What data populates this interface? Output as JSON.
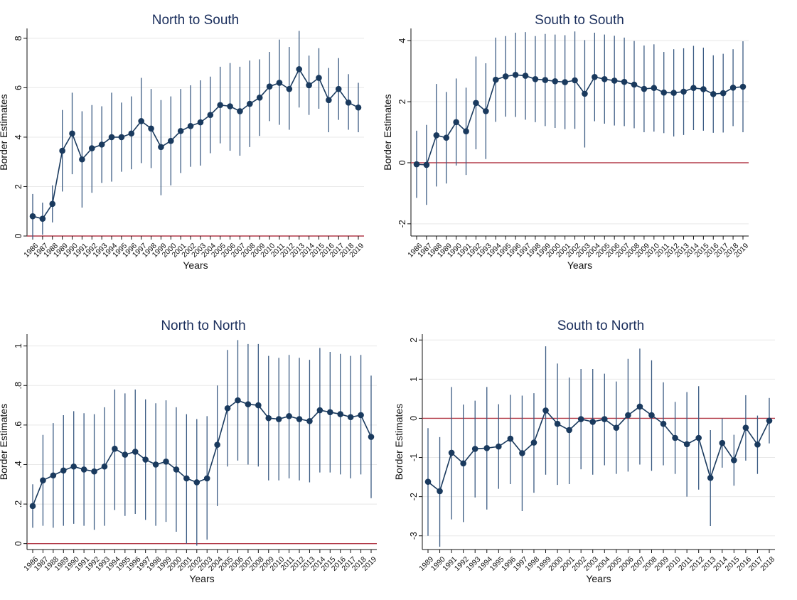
{
  "chart_data": [
    {
      "type": "line",
      "title": "North to South",
      "xlabel": "Years",
      "ylabel": "Border Estimates",
      "ylim": [
        0,
        8.4
      ],
      "yticks": [
        "0",
        "2",
        "4",
        "6",
        "8"
      ],
      "ytick_values": [
        0,
        2,
        4,
        6,
        8
      ],
      "reference_line": 0,
      "colors": {
        "series": "#1a3a5e",
        "ci": "#3b5b83",
        "reference": "#b23a48",
        "grid": "#e8e8e8"
      },
      "x": [
        "1986",
        "1987",
        "1988",
        "1989",
        "1990",
        "1991",
        "1992",
        "1993",
        "1994",
        "1995",
        "1996",
        "1997",
        "1998",
        "1999",
        "2000",
        "2001",
        "2002",
        "2003",
        "2004",
        "2005",
        "2006",
        "2007",
        "2008",
        "2009",
        "2010",
        "2011",
        "2012",
        "2013",
        "2014",
        "2015",
        "2016",
        "2017",
        "2018",
        "2019"
      ],
      "series": [
        {
          "values": [
            0.8,
            0.7,
            1.3,
            3.45,
            4.15,
            3.1,
            3.55,
            3.7,
            4.0,
            4.0,
            4.15,
            4.65,
            4.35,
            3.6,
            3.85,
            4.25,
            4.45,
            4.6,
            4.9,
            5.3,
            5.25,
            5.05,
            5.35,
            5.6,
            6.05,
            6.2,
            5.95,
            6.75,
            6.1,
            6.4,
            5.5,
            5.95,
            5.4,
            5.2
          ],
          "ci_low": [
            -0.1,
            0.05,
            0.55,
            1.8,
            2.5,
            1.15,
            1.75,
            2.15,
            2.2,
            2.6,
            2.7,
            2.95,
            2.75,
            1.65,
            2.05,
            2.55,
            2.8,
            2.85,
            3.35,
            3.75,
            3.45,
            3.25,
            3.6,
            4.05,
            4.65,
            4.5,
            4.3,
            5.2,
            4.9,
            5.15,
            4.2,
            4.7,
            4.3,
            4.2
          ],
          "ci_high": [
            1.7,
            1.35,
            2.05,
            5.1,
            5.8,
            5.05,
            5.3,
            5.25,
            5.8,
            5.4,
            5.65,
            6.4,
            5.95,
            5.5,
            5.65,
            5.95,
            6.1,
            6.3,
            6.45,
            6.85,
            7.0,
            6.85,
            7.1,
            7.15,
            7.45,
            7.95,
            7.65,
            8.3,
            7.3,
            7.6,
            6.8,
            7.2,
            6.55,
            6.2
          ]
        }
      ]
    },
    {
      "type": "line",
      "title": "South to South",
      "xlabel": "Years",
      "ylabel": "Border Estimates",
      "ylim": [
        -2.4,
        4.4
      ],
      "yticks": [
        "-2",
        "0",
        "2",
        "4"
      ],
      "ytick_values": [
        -2,
        0,
        2,
        4
      ],
      "reference_line": 0,
      "colors": {
        "series": "#1a3a5e",
        "ci": "#3b5b83",
        "reference": "#b23a48",
        "grid": "#e8e8e8"
      },
      "x": [
        "1986",
        "1987",
        "1988",
        "1989",
        "1990",
        "1991",
        "1992",
        "1993",
        "1994",
        "1995",
        "1996",
        "1997",
        "1998",
        "1999",
        "2000",
        "2001",
        "2002",
        "2003",
        "2004",
        "2005",
        "2006",
        "2007",
        "2008",
        "2009",
        "2010",
        "2011",
        "2012",
        "2013",
        "2014",
        "2015",
        "2016",
        "2017",
        "2018",
        "2019"
      ],
      "series": [
        {
          "values": [
            -0.05,
            -0.07,
            0.9,
            0.82,
            1.33,
            1.03,
            1.96,
            1.69,
            2.72,
            2.83,
            2.88,
            2.85,
            2.74,
            2.71,
            2.67,
            2.64,
            2.7,
            2.26,
            2.81,
            2.74,
            2.69,
            2.65,
            2.56,
            2.42,
            2.45,
            2.3,
            2.29,
            2.33,
            2.45,
            2.41,
            2.25,
            2.28,
            2.46,
            2.49
          ],
          "ci_low": [
            -1.15,
            -1.38,
            -0.78,
            -0.68,
            -0.09,
            -0.4,
            0.44,
            0.12,
            1.34,
            1.51,
            1.5,
            1.41,
            1.33,
            1.2,
            1.14,
            1.1,
            1.11,
            0.5,
            1.36,
            1.28,
            1.22,
            1.2,
            1.13,
            1.0,
            1.02,
            0.97,
            0.86,
            0.91,
            1.07,
            1.05,
            0.98,
            0.99,
            1.2,
            1.0
          ],
          "ci_high": [
            1.05,
            1.24,
            2.58,
            2.32,
            2.76,
            2.46,
            3.48,
            3.26,
            4.1,
            4.15,
            4.26,
            4.28,
            4.15,
            4.22,
            4.2,
            4.18,
            4.3,
            4.02,
            4.26,
            4.2,
            4.16,
            4.1,
            3.99,
            3.84,
            3.88,
            3.63,
            3.72,
            3.75,
            3.83,
            3.77,
            3.52,
            3.57,
            3.72,
            3.98
          ]
        }
      ]
    },
    {
      "type": "line",
      "title": "North to North",
      "xlabel": "Years",
      "ylabel": "Border Estimates",
      "ylim": [
        -0.03,
        1.06
      ],
      "yticks": [
        "0",
        ".2",
        ".4",
        ".6",
        ".8",
        "1"
      ],
      "ytick_values": [
        0,
        0.2,
        0.4,
        0.6,
        0.8,
        1.0
      ],
      "reference_line": 0,
      "colors": {
        "series": "#1a3a5e",
        "ci": "#3b5b83",
        "reference": "#b23a48",
        "grid": "#e8e8e8"
      },
      "x": [
        "1986",
        "1987",
        "1988",
        "1989",
        "1990",
        "1991",
        "1992",
        "1993",
        "1994",
        "1995",
        "1996",
        "1997",
        "1998",
        "1999",
        "2000",
        "2001",
        "2002",
        "2003",
        "2004",
        "2005",
        "2006",
        "2007",
        "2008",
        "2009",
        "2010",
        "2011",
        "2012",
        "2013",
        "2014",
        "2015",
        "2016",
        "2017",
        "2018",
        "2019"
      ],
      "series": [
        {
          "values": [
            0.19,
            0.32,
            0.345,
            0.37,
            0.39,
            0.375,
            0.365,
            0.39,
            0.48,
            0.45,
            0.465,
            0.425,
            0.4,
            0.415,
            0.375,
            0.33,
            0.31,
            0.33,
            0.5,
            0.685,
            0.725,
            0.705,
            0.7,
            0.635,
            0.63,
            0.645,
            0.63,
            0.62,
            0.675,
            0.665,
            0.655,
            0.64,
            0.65,
            0.54
          ],
          "ci_low": [
            0.08,
            0.09,
            0.08,
            0.09,
            0.1,
            0.09,
            0.07,
            0.09,
            0.17,
            0.14,
            0.15,
            0.12,
            0.09,
            0.11,
            0.06,
            0.0,
            -0.01,
            0.02,
            0.19,
            0.39,
            0.42,
            0.4,
            0.39,
            0.32,
            0.32,
            0.33,
            0.32,
            0.31,
            0.36,
            0.36,
            0.35,
            0.33,
            0.35,
            0.23
          ],
          "ci_high": [
            0.3,
            0.55,
            0.61,
            0.65,
            0.67,
            0.66,
            0.655,
            0.69,
            0.78,
            0.76,
            0.78,
            0.73,
            0.71,
            0.725,
            0.69,
            0.655,
            0.63,
            0.645,
            0.8,
            0.98,
            1.03,
            1.01,
            1.01,
            0.95,
            0.94,
            0.955,
            0.94,
            0.93,
            0.99,
            0.97,
            0.96,
            0.95,
            0.955,
            0.85
          ]
        }
      ]
    },
    {
      "type": "line",
      "title": "South to North",
      "xlabel": "Years",
      "ylabel": "Border Estimates",
      "ylim": [
        -3.35,
        2.15
      ],
      "yticks": [
        "-3",
        "-2",
        "-1",
        "0",
        "1",
        "2"
      ],
      "ytick_values": [
        -3,
        -2,
        -1,
        0,
        1,
        2
      ],
      "reference_line": 0,
      "colors": {
        "series": "#1a3a5e",
        "ci": "#3b5b83",
        "reference": "#b23a48",
        "grid": "#e8e8e8"
      },
      "x": [
        "1989",
        "1990",
        "1991",
        "1992",
        "1993",
        "1994",
        "1995",
        "1996",
        "1997",
        "1998",
        "1999",
        "2000",
        "2001",
        "2002",
        "2003",
        "2004",
        "2005",
        "2006",
        "2007",
        "2008",
        "2009",
        "2010",
        "2011",
        "2012",
        "2013",
        "2014",
        "2015",
        "2016",
        "2017",
        "2018"
      ],
      "series": [
        {
          "values": [
            -1.62,
            -1.86,
            -0.88,
            -1.15,
            -0.78,
            -0.76,
            -0.72,
            -0.52,
            -0.89,
            -0.62,
            0.2,
            -0.14,
            -0.3,
            -0.02,
            -0.09,
            -0.02,
            -0.24,
            0.08,
            0.3,
            0.08,
            -0.14,
            -0.5,
            -0.66,
            -0.5,
            -1.52,
            -0.63,
            -1.07,
            -0.24,
            -0.67,
            -0.06
          ],
          "ci_low": [
            -3.0,
            -3.28,
            -2.58,
            -2.65,
            -2.02,
            -2.33,
            -1.8,
            -1.68,
            -2.37,
            -1.9,
            -1.44,
            -1.7,
            -1.68,
            -1.3,
            -1.44,
            -1.2,
            -1.42,
            -1.36,
            -1.18,
            -1.34,
            -1.2,
            -1.42,
            -2.0,
            -1.82,
            -2.75,
            -1.26,
            -1.72,
            -1.08,
            -1.42,
            -0.64
          ],
          "ci_high": [
            -0.25,
            -0.48,
            0.8,
            0.35,
            0.45,
            0.8,
            0.36,
            0.6,
            0.58,
            0.64,
            1.84,
            1.4,
            1.04,
            1.26,
            1.26,
            1.14,
            0.94,
            1.52,
            1.78,
            1.48,
            0.92,
            0.42,
            0.67,
            0.82,
            -0.3,
            0.0,
            -0.42,
            0.59,
            0.07,
            0.52
          ]
        }
      ]
    }
  ]
}
